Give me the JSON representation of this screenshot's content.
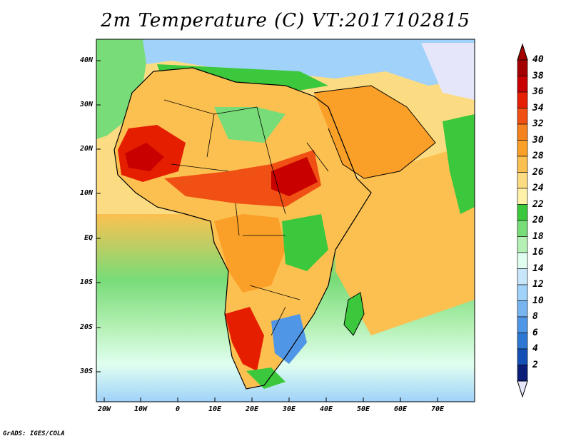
{
  "title": "2m Temperature (C) VT:2017102815",
  "credit": "GrADS: IGES/COLA",
  "axes": {
    "y_ticks": [
      "40N",
      "30N",
      "20N",
      "10N",
      "EQ",
      "10S",
      "20S",
      "30S"
    ],
    "x_ticks": [
      "20W",
      "10W",
      "0",
      "10E",
      "20E",
      "30E",
      "40E",
      "50E",
      "60E",
      "70E"
    ]
  },
  "colorbar": {
    "labels": [
      "40",
      "38",
      "36",
      "34",
      "32",
      "30",
      "28",
      "26",
      "24",
      "22",
      "20",
      "18",
      "16",
      "14",
      "12",
      "10",
      "8",
      "6",
      "4",
      "2"
    ],
    "colors": {
      "40": "#a50000",
      "38": "#c80000",
      "36": "#e61e00",
      "34": "#f05014",
      "32": "#f5821e",
      "30": "#faa028",
      "28": "#fcc050",
      "26": "#fcdc82",
      "24": "#fff0aa",
      "22": "#3cc83c",
      "20": "#78dc78",
      "18": "#b4f0b4",
      "16": "#e0fff0",
      "14": "#c8e6fa",
      "12": "#a0d2fa",
      "10": "#78b4f0",
      "8": "#5096e6",
      "6": "#2d78d2",
      "4": "#1450b4",
      "2": "#0a1e78"
    },
    "top_arrow_color": "#a50000",
    "bottom_arrow_color": "#e6e6fa"
  }
}
